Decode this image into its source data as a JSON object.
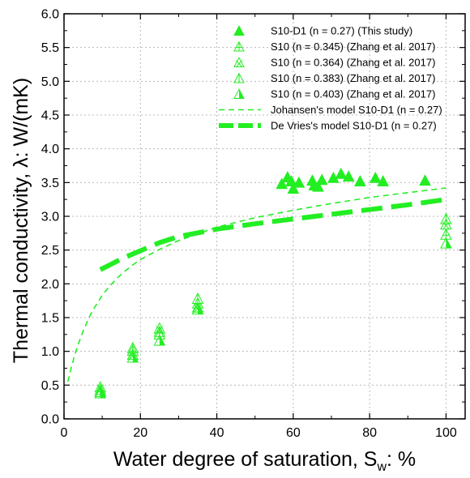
{
  "chart_data": {
    "type": "scatter",
    "xlabel": "Water degree of saturation, S",
    "xlabel_sub": "w",
    "xlabel_suffix": ": %",
    "ylabel": "Thermal conductivity, λ: W/(mK)",
    "xlim": [
      0,
      105
    ],
    "ylim": [
      0,
      6
    ],
    "xticks": [
      0,
      20,
      40,
      60,
      80,
      100
    ],
    "yticks": [
      0.0,
      0.5,
      1.0,
      1.5,
      2.0,
      2.5,
      3.0,
      3.5,
      4.0,
      4.5,
      5.0,
      5.5,
      6.0
    ],
    "grid": "dotted",
    "legend_position": "top-right",
    "colors": {
      "series": "#22ee22",
      "axis": "#000000",
      "grid": "#b8b8b8"
    },
    "series": [
      {
        "name": "S10-D1 (n = 0.27) (This study)",
        "marker": "triangle-filled",
        "x": [
          57,
          58.5,
          59.5,
          60,
          61.5,
          65,
          65.5,
          66.5,
          67.5,
          70.5,
          72.5,
          74.5,
          77.5,
          81.5,
          83.5,
          94.5
        ],
        "y": [
          3.47,
          3.57,
          3.51,
          3.4,
          3.49,
          3.52,
          3.45,
          3.43,
          3.53,
          3.56,
          3.62,
          3.58,
          3.51,
          3.56,
          3.51,
          3.52
        ]
      },
      {
        "name": "S10 (n = 0.345) (Zhang et al. 2017)",
        "marker": "triangle-plus",
        "x": [
          9.5,
          18,
          25,
          35,
          100
        ],
        "y": [
          0.42,
          1.0,
          1.28,
          1.7,
          2.72
        ]
      },
      {
        "name": "S10 (n = 0.364) (Zhang et al. 2017)",
        "marker": "triangle-cross",
        "x": [
          9.5,
          18,
          25,
          35,
          100
        ],
        "y": [
          0.46,
          0.94,
          1.33,
          1.64,
          2.87
        ]
      },
      {
        "name": "S10 (n = 0.383) (Zhang et al. 2017)",
        "marker": "triangle-line",
        "x": [
          9.5,
          18,
          25,
          35,
          100
        ],
        "y": [
          0.39,
          1.04,
          1.24,
          1.77,
          2.95
        ]
      },
      {
        "name": "S10 (n = 0.403) (Zhang et al. 2017)",
        "marker": "triangle-half",
        "x": [
          9.5,
          18,
          25,
          35,
          100
        ],
        "y": [
          0.37,
          0.9,
          1.15,
          1.61,
          2.59
        ]
      },
      {
        "name": "Johansen's model S10-D1 (n = 0.27)",
        "line": "thin-dashed",
        "x": [
          1,
          2,
          3,
          4,
          5,
          6,
          7,
          8,
          10,
          12,
          14,
          16,
          18,
          20,
          25,
          30,
          35,
          40,
          50,
          60,
          70,
          80,
          90,
          100
        ],
        "y": [
          0.55,
          0.78,
          0.98,
          1.15,
          1.3,
          1.43,
          1.55,
          1.65,
          1.83,
          1.97,
          2.09,
          2.19,
          2.28,
          2.36,
          2.51,
          2.64,
          2.74,
          2.84,
          2.98,
          3.09,
          3.19,
          3.28,
          3.35,
          3.42
        ]
      },
      {
        "name": "De Vries's model S10-D1 (n = 0.27)",
        "line": "thick-dashed",
        "x": [
          9.5,
          12,
          15,
          20,
          25,
          30,
          40,
          50,
          60,
          70,
          80,
          90,
          100
        ],
        "y": [
          2.21,
          2.28,
          2.37,
          2.49,
          2.61,
          2.7,
          2.81,
          2.89,
          2.96,
          3.03,
          3.1,
          3.17,
          3.25
        ]
      }
    ]
  }
}
